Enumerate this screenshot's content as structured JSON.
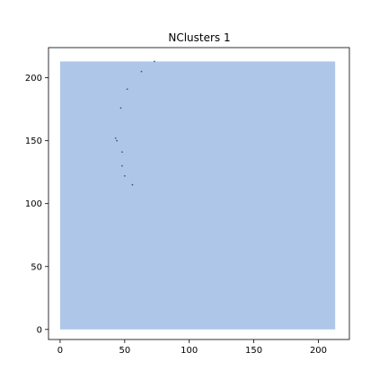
{
  "chart_data": {
    "type": "scatter",
    "title": "NClusters 1",
    "xlabel": "",
    "ylabel": "",
    "xlim": [
      -9,
      224
    ],
    "ylim": [
      -8,
      224
    ],
    "grid": false,
    "legend": "none",
    "xticks": [
      0,
      50,
      100,
      150,
      200
    ],
    "yticks": [
      0,
      50,
      100,
      150,
      200
    ],
    "cluster_region": {
      "x0": 0,
      "x1": 213,
      "y0": 0,
      "y1": 213
    },
    "colors": {
      "region": "#aec6e8",
      "point": "#3a5a9a",
      "axis": "#000000"
    },
    "series": [
      {
        "x": [
          73,
          63,
          52,
          47,
          43,
          44,
          48,
          48,
          50,
          56
        ],
        "y": [
          213,
          205,
          191,
          176,
          152,
          150,
          141,
          130,
          122,
          115
        ]
      }
    ]
  }
}
